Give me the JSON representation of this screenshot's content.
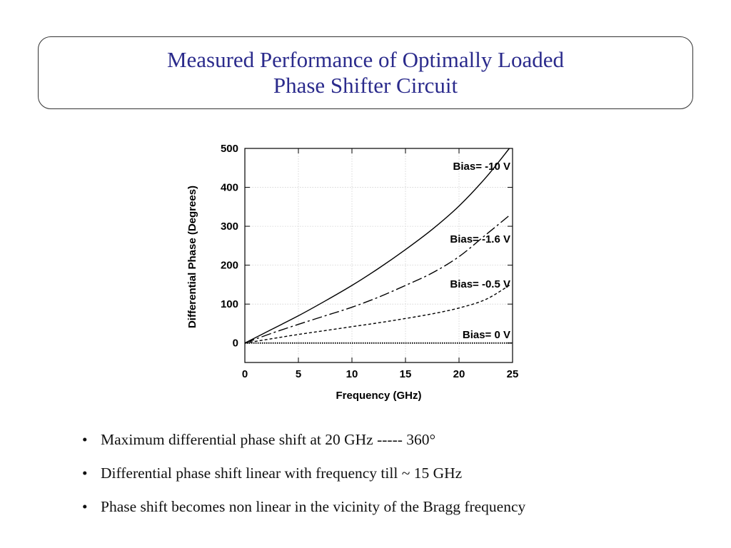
{
  "slide": {
    "title_lines": [
      "Measured Performance of Optimally Loaded",
      "Phase Shifter Circuit"
    ]
  },
  "chart_data": {
    "type": "line",
    "xlabel": "Frequency (GHz)",
    "ylabel": "Differential Phase (Degrees)",
    "xlim": [
      0,
      25
    ],
    "ylim": [
      -50,
      500
    ],
    "xticks": [
      0,
      5,
      10,
      15,
      20,
      25
    ],
    "yticks": [
      0,
      100,
      200,
      300,
      400,
      500
    ],
    "grid": true,
    "series": [
      {
        "name": "Bias= -10 V",
        "style": "solid",
        "x": [
          0,
          2.5,
          5,
          7.5,
          10,
          12.5,
          15,
          17.5,
          20,
          22.5,
          24.7
        ],
        "y": [
          0,
          35,
          70,
          108,
          148,
          192,
          240,
          292,
          352,
          425,
          500
        ]
      },
      {
        "name": "Bias= -1.6 V",
        "style": "long-dash",
        "x": [
          0,
          2.5,
          5,
          7.5,
          10,
          12.5,
          15,
          17.5,
          20,
          22.5,
          24.8
        ],
        "y": [
          0,
          25,
          48,
          70,
          92,
          118,
          148,
          180,
          222,
          278,
          330
        ]
      },
      {
        "name": "Bias= -0.5 V",
        "style": "short-dash",
        "x": [
          0,
          2.5,
          5,
          7.5,
          10,
          12.5,
          15,
          17.5,
          20,
          22.5,
          24.8
        ],
        "y": [
          0,
          11,
          22,
          32,
          42,
          52,
          63,
          75,
          90,
          112,
          150
        ]
      },
      {
        "name": "Bias= 0 V",
        "style": "dotted",
        "x": [
          0,
          5,
          10,
          15,
          20,
          25
        ],
        "y": [
          0,
          0,
          0,
          0,
          0,
          0
        ]
      }
    ],
    "annotations": [
      "Bias= -10 V",
      "Bias= -1.6 V",
      "Bias= -0.5 V",
      "Bias= 0 V"
    ]
  },
  "bullets": [
    "Maximum differential phase shift at 20 GHz ----- 360°",
    "Differential phase shift linear with frequency till ~ 15 GHz",
    "Phase shift becomes non linear in the vicinity of the Bragg frequency"
  ],
  "bullet_glyph": "•"
}
